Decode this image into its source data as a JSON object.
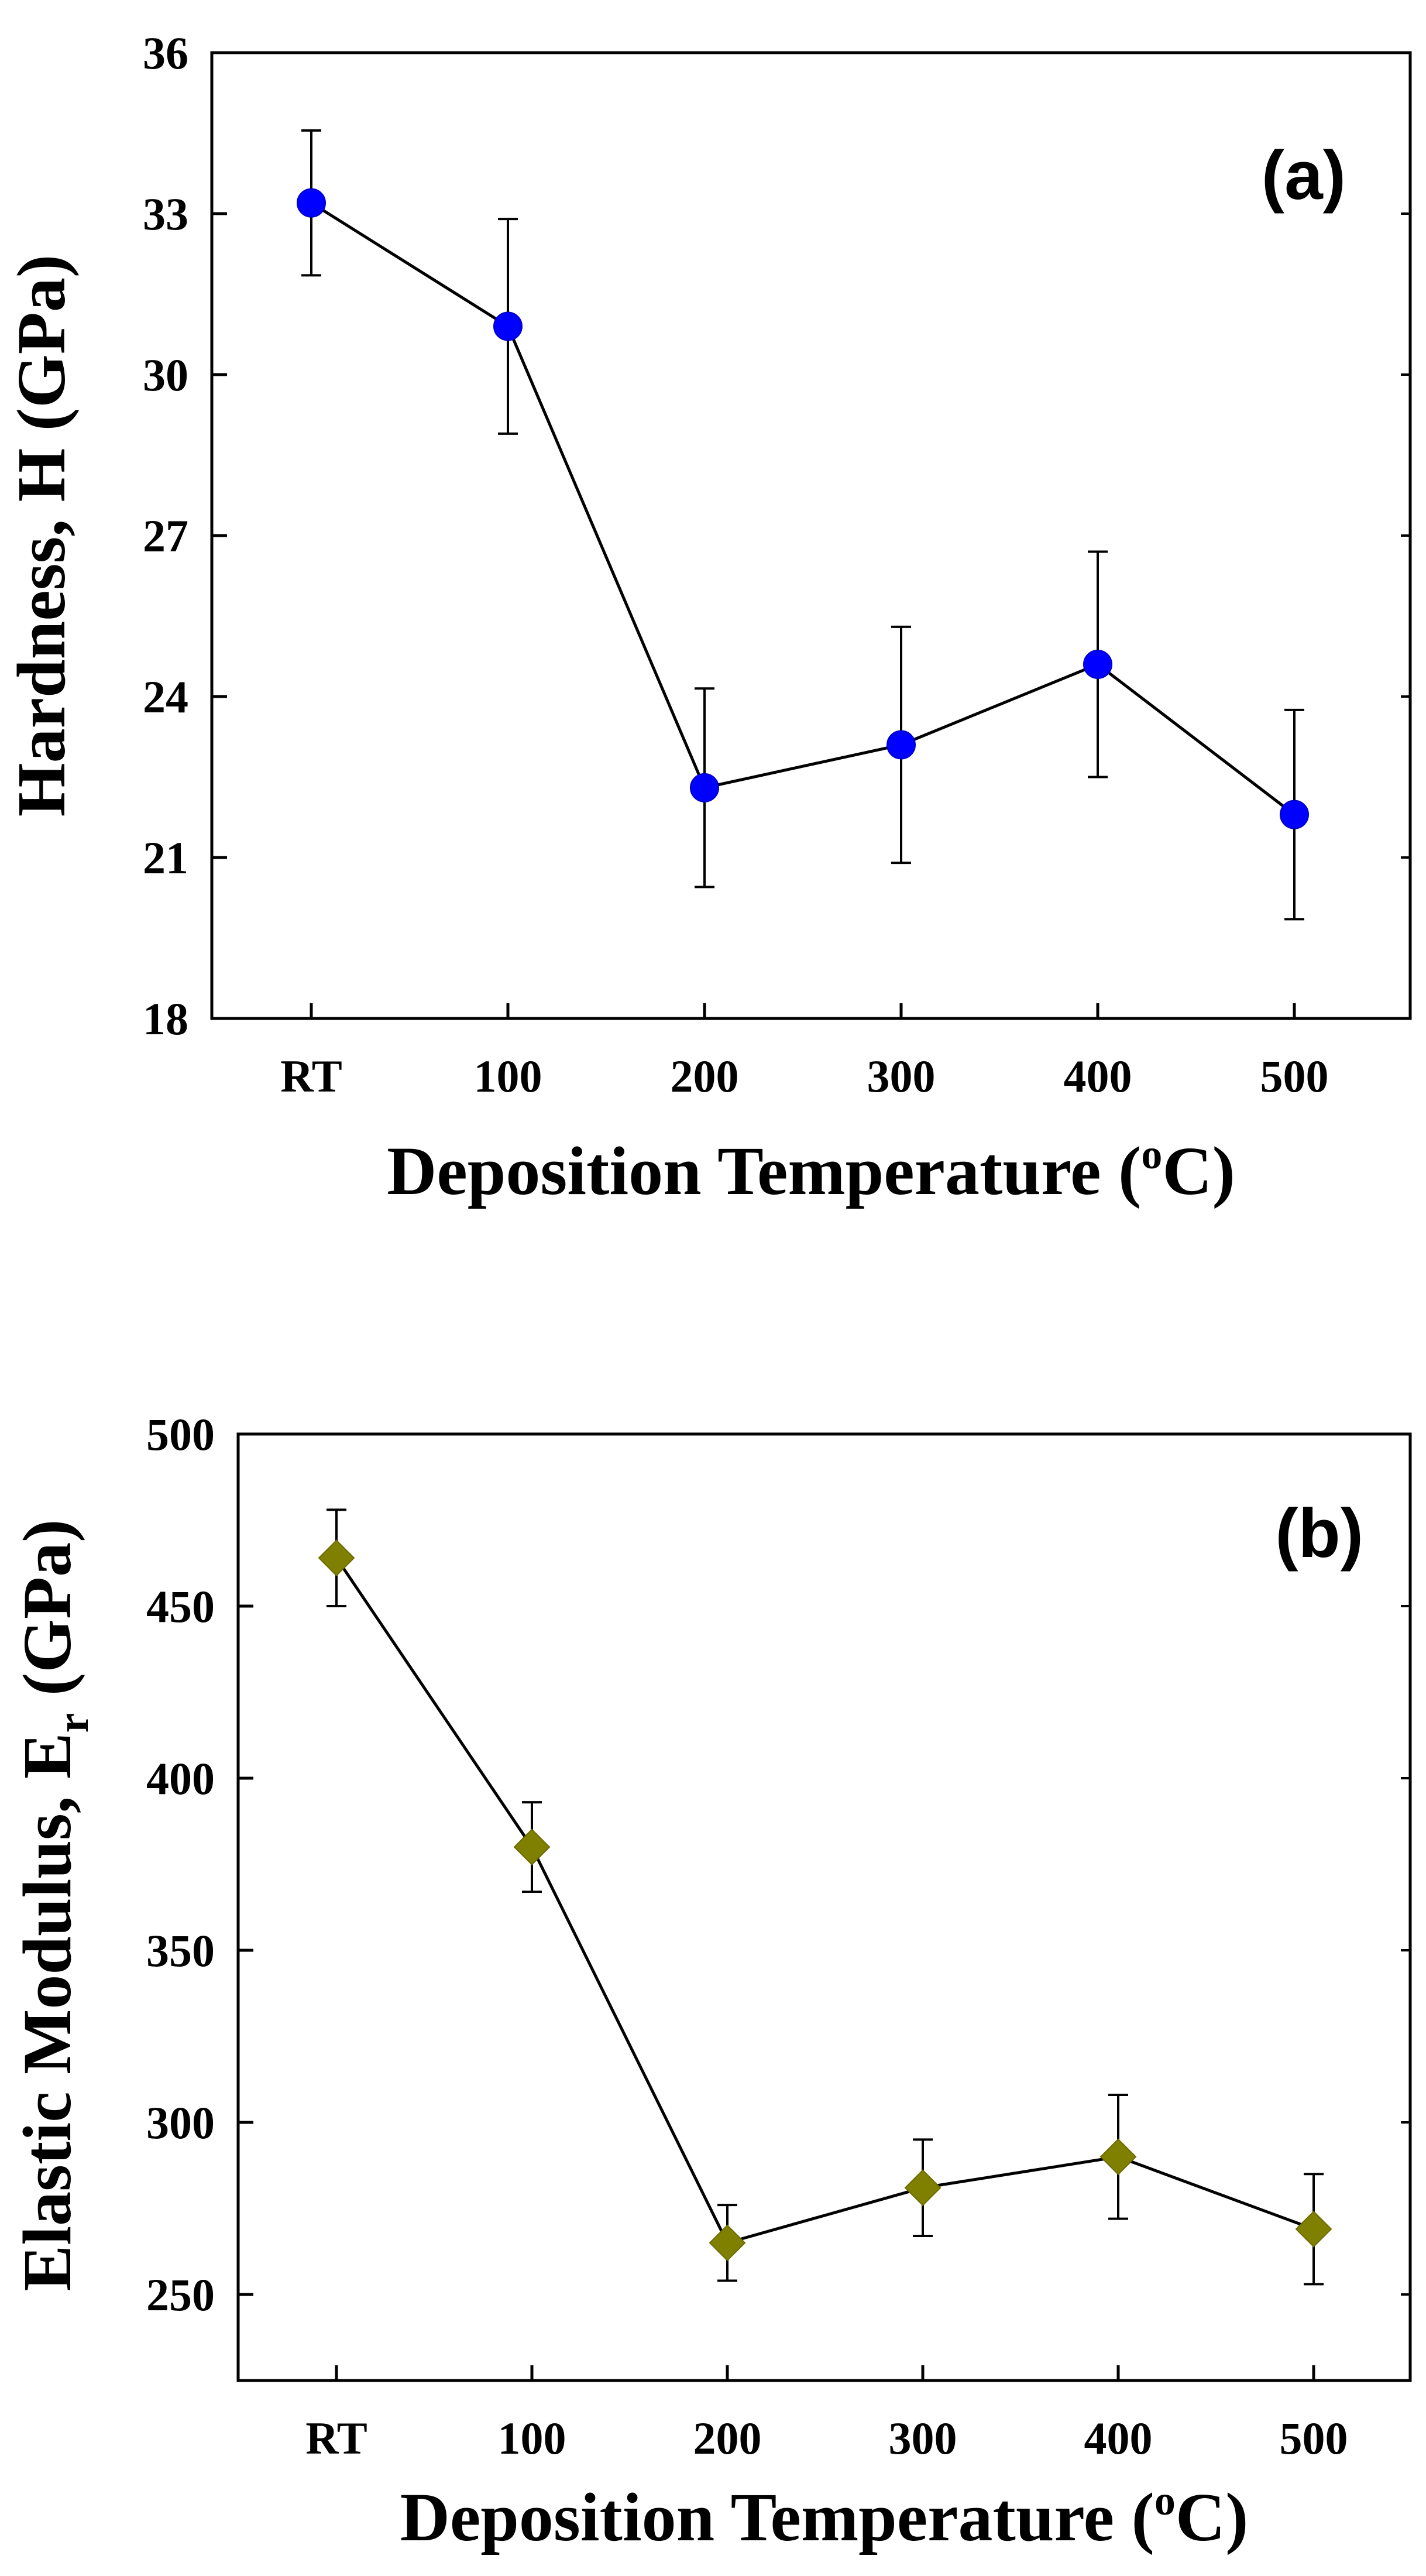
{
  "chart_data": [
    {
      "type": "line",
      "panel_label": "(a)",
      "categories": [
        "RT",
        "100",
        "200",
        "300",
        "400",
        "500"
      ],
      "series": [
        {
          "name": "Hardness",
          "marker": "circle",
          "color": "#0000ff",
          "values": [
            33.2,
            30.9,
            22.3,
            23.1,
            24.6,
            21.8
          ],
          "error": [
            1.35,
            2.0,
            1.85,
            2.2,
            2.1,
            1.95
          ]
        }
      ],
      "xlabel": "Deposition Temperature (",
      "xlabel_sup": "o",
      "xlabel_end": "C)",
      "ylabel": "Hardness, H (GPa)",
      "ylim": [
        18,
        36
      ],
      "yticks": [
        18,
        21,
        24,
        27,
        30,
        33,
        36
      ],
      "ytick_labels": [
        "18",
        "21",
        "24",
        "27",
        "30",
        "33",
        "36"
      ]
    },
    {
      "type": "line",
      "panel_label": "(b)",
      "categories": [
        "RT",
        "100",
        "200",
        "300",
        "400",
        "500"
      ],
      "series": [
        {
          "name": "Elastic Modulus",
          "marker": "diamond",
          "color": "#808000",
          "values": [
            464,
            380,
            265,
            281,
            290,
            269
          ],
          "error": [
            14,
            13,
            11,
            14,
            18,
            16
          ]
        }
      ],
      "xlabel": "Deposition Temperature (",
      "xlabel_sup": "o",
      "xlabel_end": "C)",
      "ylabel": "Elastic Modulus, E",
      "ylabel_sub": "r",
      "ylabel_end": " (GPa)",
      "ylim": [
        225,
        500
      ],
      "yticks": [
        250,
        300,
        350,
        400,
        450,
        500
      ],
      "ytick_labels": [
        "250",
        "300",
        "350",
        "400",
        "450",
        "500"
      ]
    }
  ]
}
